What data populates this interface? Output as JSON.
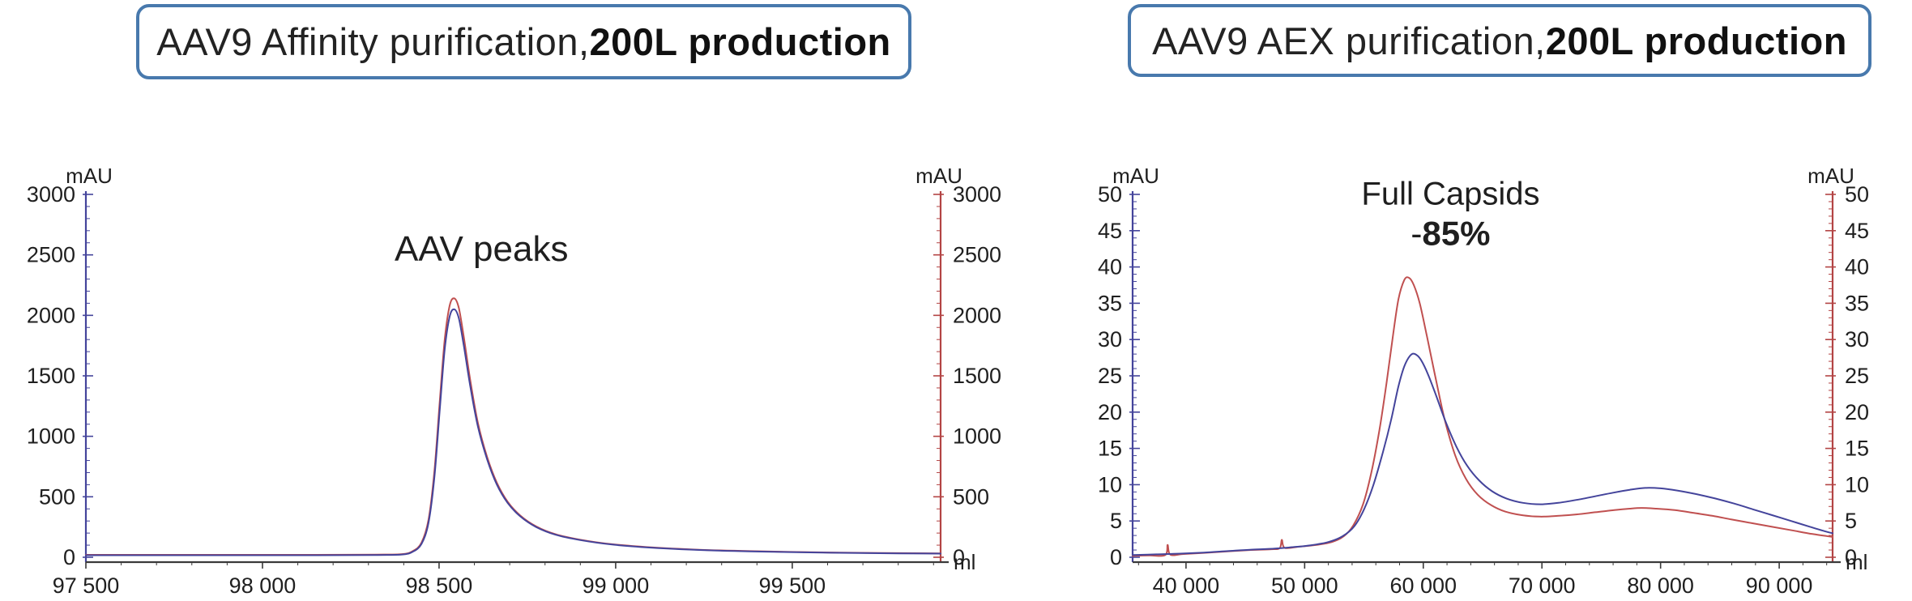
{
  "titles": [
    {
      "normal": "AAV9 Affinity purification, ",
      "bold": "200L production"
    },
    {
      "normal": "AAV9 AEX purification, ",
      "bold": "200L production"
    }
  ],
  "colors": {
    "title_border": "#4879ad",
    "text": "#232323",
    "axis_blue": "#44449b",
    "axis_red": "#b34444",
    "trace_red": "#c05050",
    "trace_blue": "#44449b",
    "x_axis_black": "#3a3a3a",
    "tick_label": "#1f1f1f"
  },
  "chart_data": [
    {
      "type": "line",
      "id": "affinity-chromatogram",
      "title": "AAV9 Affinity purification, 200L production",
      "x_axis": {
        "label": "ml",
        "min": 97500,
        "max": 99920,
        "major_tick": 500,
        "minor_tick": 100,
        "labeled_ticks": [
          {
            "value": 97500,
            "label": "97 500"
          },
          {
            "value": 98000,
            "label": "98 000"
          },
          {
            "value": 98500,
            "label": "98 500"
          },
          {
            "value": 99000,
            "label": "99 000"
          },
          {
            "value": 99500,
            "label": "99 500"
          }
        ]
      },
      "y_axis": {
        "label": "mAU",
        "min": 0,
        "max": 3000,
        "major_tick": 500,
        "minor_tick": 100,
        "dual": true,
        "left_color": "#44449b",
        "right_color": "#b34444"
      },
      "legend": "none",
      "grid": false,
      "annotations": [
        {
          "x": 98620,
          "y": 2450,
          "font": 44,
          "parts": [
            {
              "text": "AAV peaks",
              "bold": false
            }
          ]
        }
      ],
      "series": [
        {
          "name": "trace-red",
          "color": "#c05050",
          "points": [
            [
              97500,
              20
            ],
            [
              97850,
              20
            ],
            [
              98150,
              20
            ],
            [
              98320,
              22
            ],
            [
              98395,
              26
            ],
            [
              98425,
              50
            ],
            [
              98450,
              120
            ],
            [
              98470,
              310
            ],
            [
              98487,
              720
            ],
            [
              98502,
              1290
            ],
            [
              98516,
              1800
            ],
            [
              98530,
              2080
            ],
            [
              98543,
              2140
            ],
            [
              98556,
              2060
            ],
            [
              98570,
              1820
            ],
            [
              98588,
              1470
            ],
            [
              98610,
              1110
            ],
            [
              98636,
              830
            ],
            [
              98663,
              620
            ],
            [
              98694,
              460
            ],
            [
              98730,
              345
            ],
            [
              98775,
              255
            ],
            [
              98830,
              190
            ],
            [
              98900,
              145
            ],
            [
              98990,
              108
            ],
            [
              99100,
              82
            ],
            [
              99230,
              63
            ],
            [
              99380,
              51
            ],
            [
              99550,
              42
            ],
            [
              99720,
              36
            ],
            [
              99920,
              32
            ]
          ]
        },
        {
          "name": "trace-blue",
          "color": "#44449b",
          "points": [
            [
              97500,
              17
            ],
            [
              97850,
              17
            ],
            [
              98150,
              17
            ],
            [
              98320,
              19
            ],
            [
              98395,
              23
            ],
            [
              98425,
              45
            ],
            [
              98450,
              110
            ],
            [
              98470,
              285
            ],
            [
              98487,
              670
            ],
            [
              98502,
              1220
            ],
            [
              98516,
              1720
            ],
            [
              98530,
              1990
            ],
            [
              98543,
              2050
            ],
            [
              98556,
              1975
            ],
            [
              98570,
              1750
            ],
            [
              98588,
              1420
            ],
            [
              98610,
              1080
            ],
            [
              98636,
              810
            ],
            [
              98663,
              605
            ],
            [
              98694,
              450
            ],
            [
              98730,
              338
            ],
            [
              98775,
              250
            ],
            [
              98830,
              186
            ],
            [
              98900,
              142
            ],
            [
              98990,
              105
            ],
            [
              99100,
              80
            ],
            [
              99230,
              61
            ],
            [
              99380,
              49
            ],
            [
              99550,
              40
            ],
            [
              99720,
              34
            ],
            [
              99920,
              30
            ]
          ]
        }
      ]
    },
    {
      "type": "line",
      "id": "aex-chromatogram",
      "title": "AAV9 AEX purification, 200L production",
      "x_axis": {
        "label": "ml",
        "min": 35500,
        "max": 94500,
        "major_tick": 10000,
        "minor_tick": 2000,
        "labeled_ticks": [
          {
            "value": 40000,
            "label": "40 000"
          },
          {
            "value": 50000,
            "label": "50 000"
          },
          {
            "value": 60000,
            "label": "60 000"
          },
          {
            "value": 70000,
            "label": "70 000"
          },
          {
            "value": 80000,
            "label": "80 000"
          },
          {
            "value": 90000,
            "label": "90 000"
          }
        ]
      },
      "y_axis": {
        "label": "mAU",
        "min": 0,
        "max": 50,
        "major_tick": 5,
        "minor_tick": 1,
        "dual": true,
        "left_color": "#44449b",
        "right_color": "#b34444"
      },
      "legend": "none",
      "grid": false,
      "annotations": [
        {
          "x": 62300,
          "y": 48.6,
          "font": 40,
          "parts": [
            {
              "text": "Full Capsids",
              "bold": false
            }
          ]
        },
        {
          "x": 62300,
          "y": 43.0,
          "font": 42,
          "parts": [
            {
              "text": "-",
              "bold": false
            },
            {
              "text": "85%",
              "bold": true
            }
          ]
        }
      ],
      "series": [
        {
          "name": "trace-red",
          "color": "#c05050",
          "points": [
            [
              35500,
              0.2
            ],
            [
              36900,
              0.25
            ],
            [
              38250,
              0.3
            ],
            [
              38450,
              1.7
            ],
            [
              38680,
              0.35
            ],
            [
              39800,
              0.45
            ],
            [
              41500,
              0.6
            ],
            [
              43500,
              0.8
            ],
            [
              45500,
              1.0
            ],
            [
              47200,
              1.1
            ],
            [
              47900,
              1.25
            ],
            [
              48080,
              2.4
            ],
            [
              48320,
              1.3
            ],
            [
              49500,
              1.45
            ],
            [
              51000,
              1.7
            ],
            [
              52300,
              2.1
            ],
            [
              53300,
              2.9
            ],
            [
              54100,
              4.4
            ],
            [
              54900,
              7.2
            ],
            [
              55600,
              11.5
            ],
            [
              56300,
              17.5
            ],
            [
              56900,
              24
            ],
            [
              57400,
              30
            ],
            [
              57900,
              35.5
            ],
            [
              58400,
              38.2
            ],
            [
              58800,
              38.5
            ],
            [
              59200,
              37.5
            ],
            [
              59700,
              35
            ],
            [
              60300,
              30.5
            ],
            [
              61000,
              25
            ],
            [
              61800,
              19
            ],
            [
              62700,
              14
            ],
            [
              63600,
              10.8
            ],
            [
              64600,
              8.6
            ],
            [
              65700,
              7.2
            ],
            [
              66900,
              6.3
            ],
            [
              68300,
              5.8
            ],
            [
              69800,
              5.6
            ],
            [
              71300,
              5.7
            ],
            [
              72900,
              5.9
            ],
            [
              74500,
              6.2
            ],
            [
              76100,
              6.5
            ],
            [
              77400,
              6.7
            ],
            [
              78400,
              6.8
            ],
            [
              79600,
              6.7
            ],
            [
              81200,
              6.5
            ],
            [
              82800,
              6.1
            ],
            [
              84400,
              5.7
            ],
            [
              86000,
              5.2
            ],
            [
              87700,
              4.7
            ],
            [
              89400,
              4.2
            ],
            [
              91100,
              3.7
            ],
            [
              92800,
              3.2
            ],
            [
              94500,
              2.8
            ]
          ]
        },
        {
          "name": "trace-blue",
          "color": "#44449b",
          "points": [
            [
              35500,
              0.3
            ],
            [
              37500,
              0.4
            ],
            [
              39500,
              0.5
            ],
            [
              41500,
              0.65
            ],
            [
              43500,
              0.85
            ],
            [
              45500,
              1.05
            ],
            [
              47500,
              1.2
            ],
            [
              49000,
              1.4
            ],
            [
              50500,
              1.65
            ],
            [
              52000,
              2.1
            ],
            [
              53200,
              2.9
            ],
            [
              54200,
              4.3
            ],
            [
              55000,
              6.6
            ],
            [
              55800,
              10
            ],
            [
              56600,
              14.5
            ],
            [
              57300,
              19
            ],
            [
              57900,
              23.5
            ],
            [
              58400,
              26.3
            ],
            [
              58900,
              27.8
            ],
            [
              59300,
              28
            ],
            [
              59800,
              27.2
            ],
            [
              60400,
              25.2
            ],
            [
              61100,
              22.2
            ],
            [
              61900,
              18.6
            ],
            [
              62800,
              15.2
            ],
            [
              63700,
              12.6
            ],
            [
              64700,
              10.6
            ],
            [
              65800,
              9.1
            ],
            [
              67000,
              8.1
            ],
            [
              68400,
              7.5
            ],
            [
              69900,
              7.3
            ],
            [
              71400,
              7.5
            ],
            [
              72900,
              7.9
            ],
            [
              74500,
              8.4
            ],
            [
              76000,
              8.9
            ],
            [
              77400,
              9.3
            ],
            [
              78700,
              9.55
            ],
            [
              80000,
              9.5
            ],
            [
              81400,
              9.2
            ],
            [
              83000,
              8.7
            ],
            [
              84600,
              8.1
            ],
            [
              86200,
              7.4
            ],
            [
              87800,
              6.6
            ],
            [
              89400,
              5.8
            ],
            [
              91000,
              5.0
            ],
            [
              92600,
              4.2
            ],
            [
              93800,
              3.6
            ],
            [
              94500,
              3.3
            ]
          ]
        }
      ]
    }
  ]
}
